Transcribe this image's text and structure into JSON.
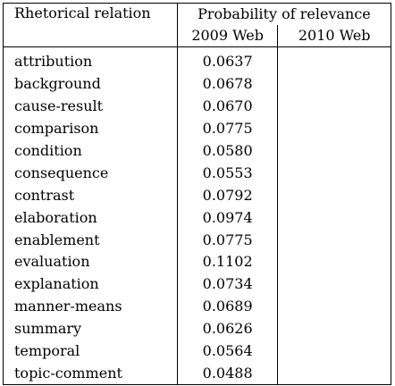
{
  "table": {
    "header": {
      "relation_label": "Rhetorical relation",
      "probability_label": "Probability of relevance",
      "sub_2009": "2009 Web",
      "sub_2010": "2010 Web"
    },
    "rows": [
      {
        "relation": "attribution",
        "v2009": "0.0637",
        "v2010": ""
      },
      {
        "relation": "background",
        "v2009": "0.0678",
        "v2010": ""
      },
      {
        "relation": "cause-result",
        "v2009": "0.0670",
        "v2010": ""
      },
      {
        "relation": "comparison",
        "v2009": "0.0775",
        "v2010": ""
      },
      {
        "relation": "condition",
        "v2009": "0.0580",
        "v2010": ""
      },
      {
        "relation": "consequence",
        "v2009": "0.0553",
        "v2010": ""
      },
      {
        "relation": "contrast",
        "v2009": "0.0792",
        "v2010": ""
      },
      {
        "relation": "elaboration",
        "v2009": "0.0974",
        "v2010": ""
      },
      {
        "relation": "enablement",
        "v2009": "0.0775",
        "v2010": ""
      },
      {
        "relation": "evaluation",
        "v2009": "0.1102",
        "v2010": ""
      },
      {
        "relation": "explanation",
        "v2009": "0.0734",
        "v2010": ""
      },
      {
        "relation": "manner-means",
        "v2009": "0.0689",
        "v2010": ""
      },
      {
        "relation": "summary",
        "v2009": "0.0626",
        "v2010": ""
      },
      {
        "relation": "temporal",
        "v2009": "0.0564",
        "v2010": ""
      },
      {
        "relation": "topic-comment",
        "v2009": "0.0488",
        "v2010": ""
      }
    ]
  }
}
